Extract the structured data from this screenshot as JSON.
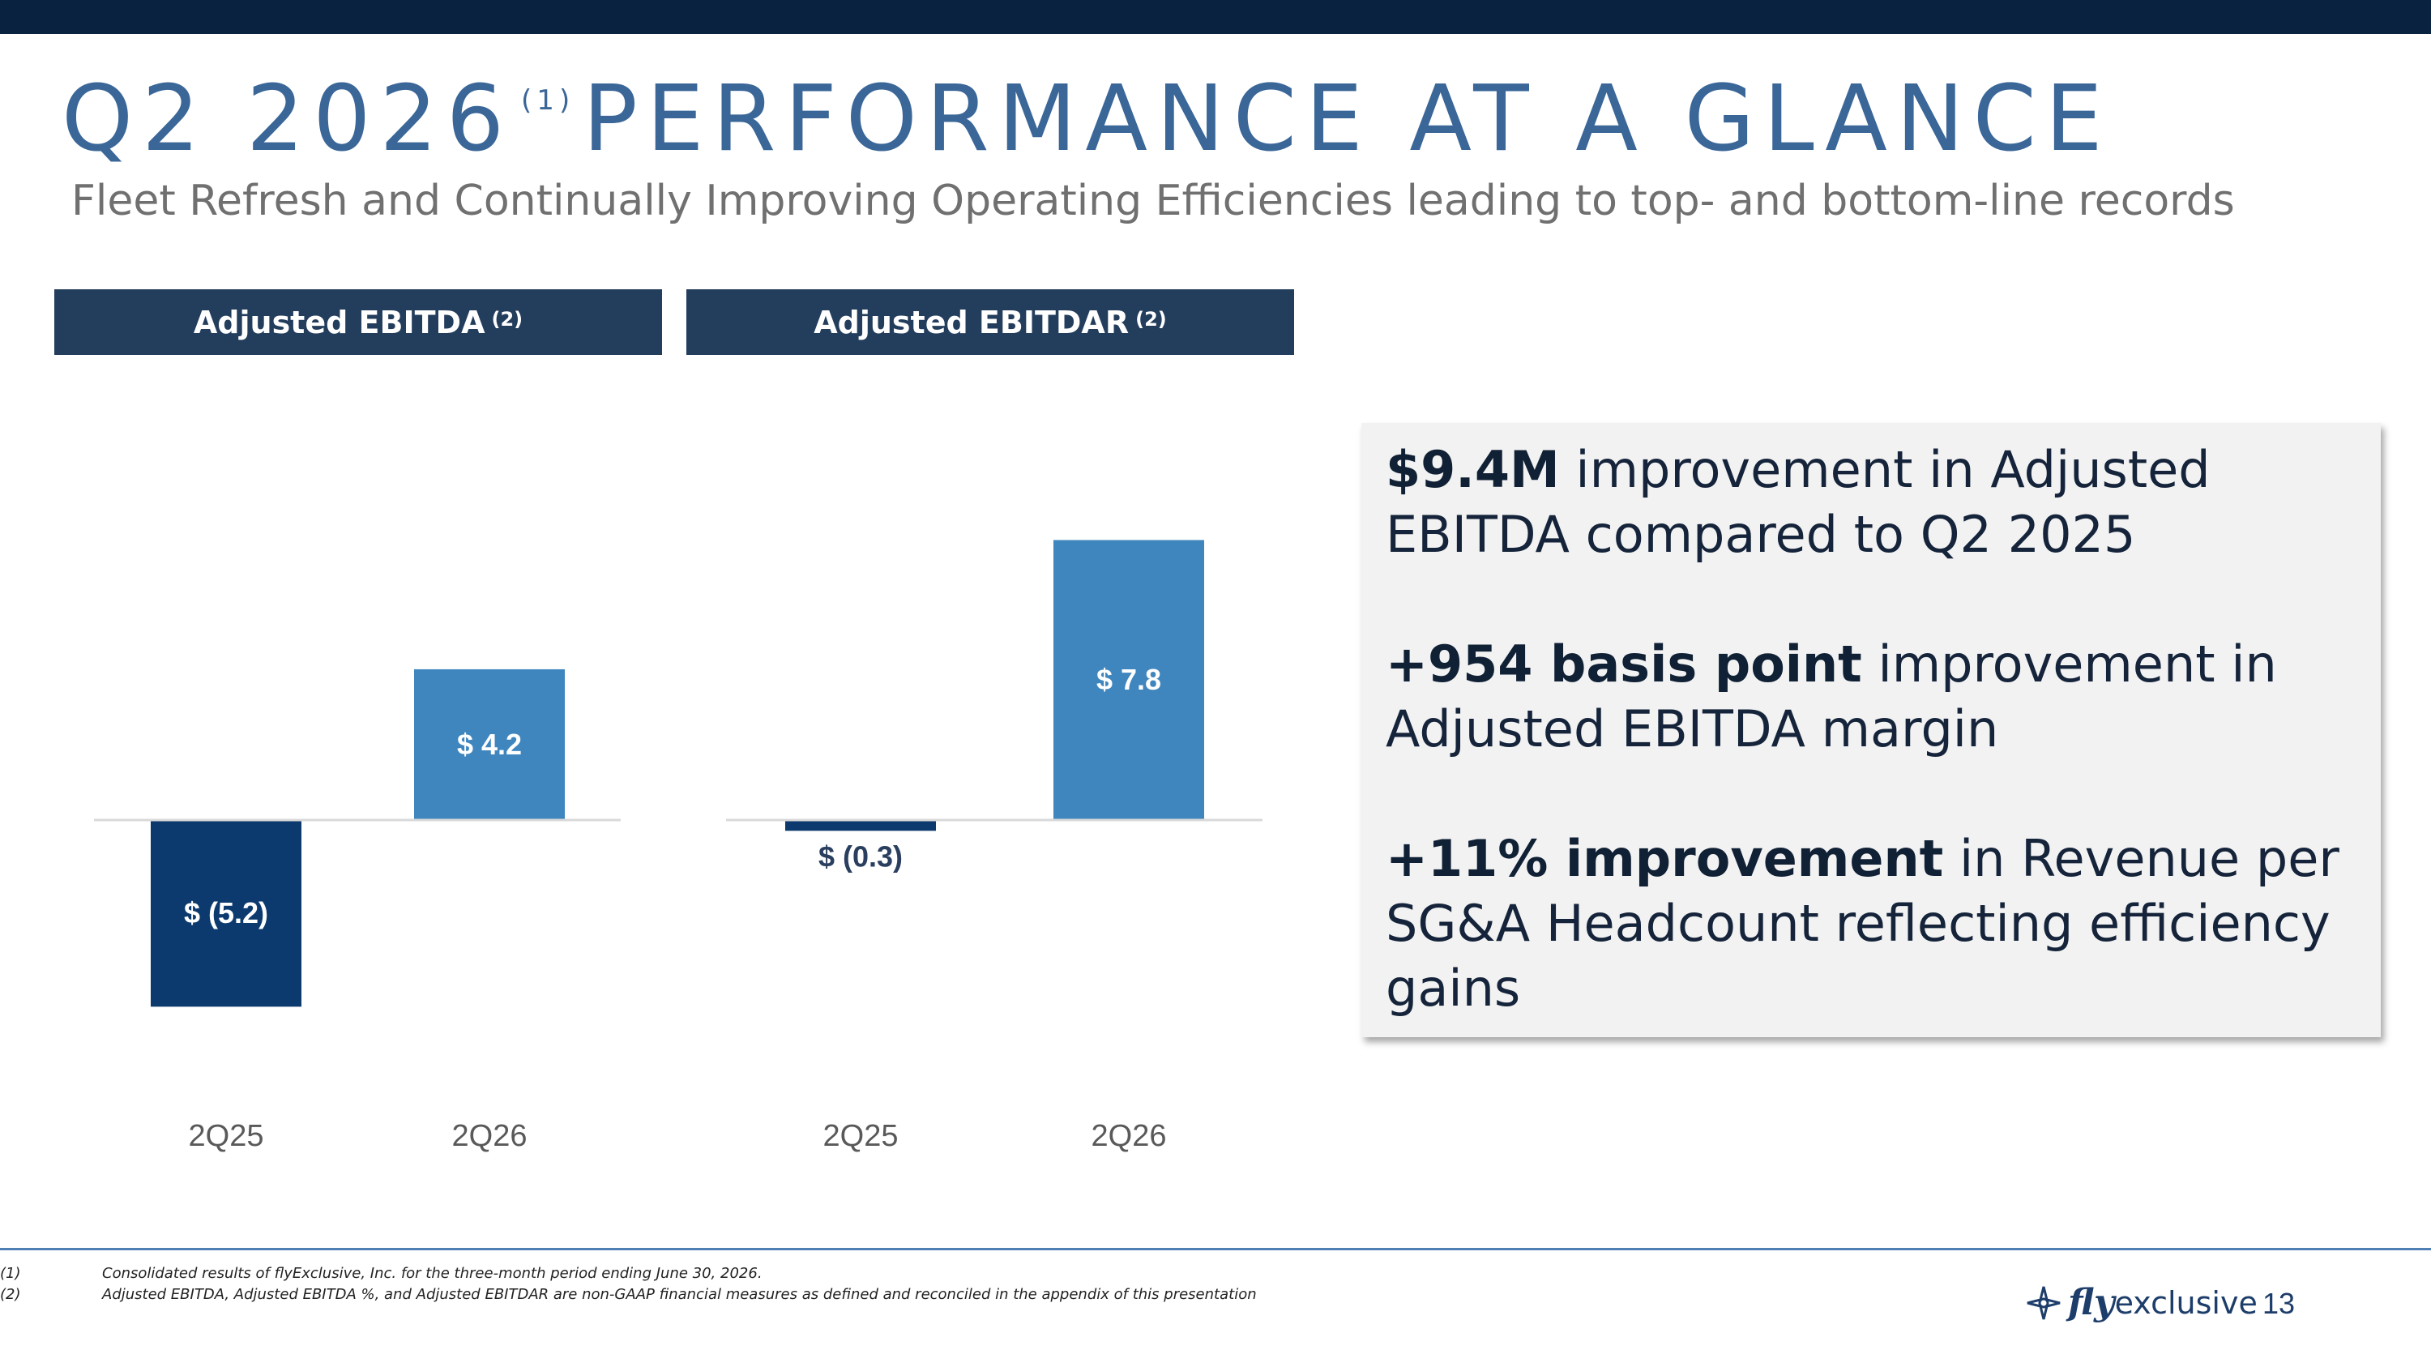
{
  "slide": {
    "title_prefix": "Q2 2026",
    "title_footnote": "(1)",
    "title_suffix": "PERFORMANCE AT A GLANCE",
    "subtitle": "Fleet Refresh and Continually Improving Operating Efficiencies leading to top- and bottom-line records",
    "page_number": "13",
    "logo_fly": "fly",
    "logo_exclusive": "exclusive"
  },
  "chart_headers": [
    {
      "label": "Adjusted EBITDA",
      "footnote": "(2)"
    },
    {
      "label": "Adjusted EBITDAR",
      "footnote": "(2)"
    }
  ],
  "chart_data": [
    {
      "type": "bar",
      "title": "Adjusted EBITDA (2)",
      "categories": [
        "2Q25",
        "2Q26"
      ],
      "values": [
        -5.2,
        4.2
      ],
      "data_labels": [
        "$ (5.2)",
        "$ 4.2"
      ],
      "colors": [
        "#0d3a6e",
        "#3f86bf"
      ],
      "ylim": [
        -5.2,
        7.8
      ],
      "grid": false
    },
    {
      "type": "bar",
      "title": "Adjusted EBITDAR (2)",
      "categories": [
        "2Q25",
        "2Q26"
      ],
      "values": [
        -0.3,
        7.8
      ],
      "data_labels": [
        "$ (0.3)",
        "$ 7.8"
      ],
      "colors": [
        "#0d3a6e",
        "#3f86bf"
      ],
      "ylim": [
        -5.2,
        7.8
      ],
      "grid": false
    }
  ],
  "callout": [
    {
      "bold": "$9.4M",
      "rest": " improvement in Adjusted EBITDA compared to Q2 2025"
    },
    {
      "bold": "+954 basis point",
      "rest": " improvement in Adjusted EBITDA margin"
    },
    {
      "bold": "+11% improvement",
      "rest": " in Revenue per SG&A Headcount reflecting efficiency gains"
    }
  ],
  "footnotes": [
    {
      "num": "(1)",
      "text": "Consolidated results of flyExclusive, Inc. for the three-month period ending June 30, 2026."
    },
    {
      "num": "(2)",
      "text": "Adjusted EBITDA, Adjusted EBITDA %, and Adjusted EBITDAR are non-GAAP financial measures as defined and reconciled in the appendix of this presentation"
    }
  ],
  "colors": {
    "top_bar": "#08223f",
    "title": "#3a6698",
    "header_bg": "#233d5c",
    "bar_negative": "#0d3a6e",
    "bar_positive": "#3f86bf",
    "callout_bg": "#f2f2f2",
    "footer_rule": "#4f7fb4"
  }
}
